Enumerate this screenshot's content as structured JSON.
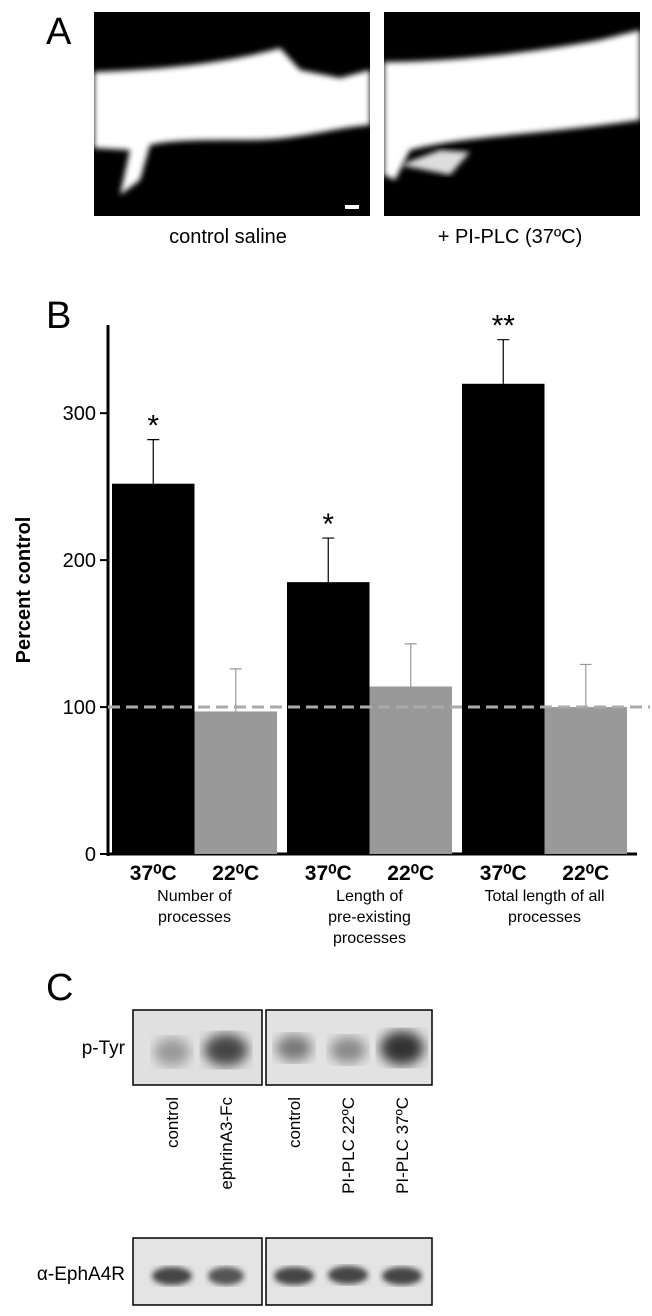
{
  "panel_a": {
    "label": "A",
    "captions": [
      "control saline",
      "+ PI-PLC (37ºC)"
    ]
  },
  "chart_data": {
    "type": "bar",
    "panel_label": "B",
    "ylabel": "Percent control",
    "groups": [
      [
        "Number of",
        "processes"
      ],
      [
        "Length of",
        "pre-existing",
        "processes"
      ],
      [
        "Total length of all",
        "processes"
      ]
    ],
    "series": [
      {
        "name": "37⁰C",
        "color": "#000000",
        "values": [
          252,
          185,
          320
        ],
        "errors": [
          30,
          30,
          30
        ]
      },
      {
        "name": "22⁰C",
        "color": "#999999",
        "values": [
          97,
          114,
          100
        ],
        "errors": [
          29,
          29,
          29
        ]
      }
    ],
    "significance": [
      "*",
      "*",
      "**"
    ],
    "reference_line": 100,
    "ylim": [
      0,
      360
    ],
    "yticks": [
      0,
      100,
      200,
      300
    ],
    "grid": false
  },
  "panel_c": {
    "label": "C",
    "row_labels": [
      "p-Tyr",
      "α-EphA4R"
    ],
    "lanes": [
      "control",
      "ephrinA3-Fc",
      "control",
      "PI-PLC 22ºC",
      "PI-PLC 37ºC"
    ]
  }
}
